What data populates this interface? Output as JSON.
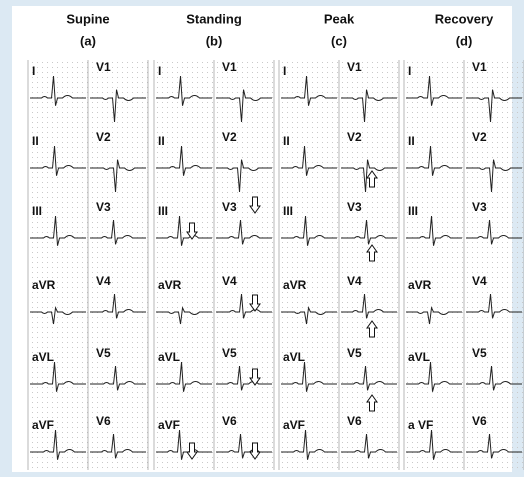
{
  "panels": [
    {
      "title": "Supine",
      "label": "(a)",
      "limb_leads": [
        "I",
        "II",
        "III",
        "aVR",
        "aVL",
        "aVF"
      ],
      "chest_leads": [
        "V1",
        "V2",
        "V3",
        "V4",
        "V5",
        "V6"
      ]
    },
    {
      "title": "Standing",
      "label": "(b)",
      "limb_leads": [
        "I",
        "II",
        "III",
        "aVR",
        "aVL",
        "aVF"
      ],
      "chest_leads": [
        "V1",
        "V2",
        "V3",
        "V4",
        "V5",
        "V6"
      ]
    },
    {
      "title": "Peak",
      "label": "(c)",
      "limb_leads": [
        "I",
        "II",
        "III",
        "aVR",
        "aVL",
        "aVF"
      ],
      "chest_leads": [
        "V1",
        "V2",
        "V3",
        "V4",
        "V5",
        "V6"
      ]
    },
    {
      "title": "Recovery",
      "label": "(d)",
      "limb_leads": [
        "I",
        "II",
        "III",
        "aVR",
        "aVL",
        "a VF"
      ],
      "chest_leads": [
        "V1",
        "V2",
        "V3",
        "V4",
        "V5",
        "V6"
      ]
    }
  ]
}
